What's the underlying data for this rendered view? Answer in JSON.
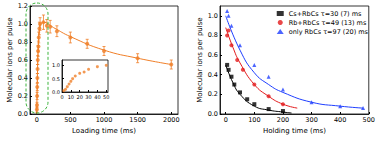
{
  "chart_data": [
    {
      "type": "scatter",
      "x_label": "Loading time (ms)",
      "y_label": "Molecular ions per pulse",
      "xlim": [
        -100,
        2100
      ],
      "xticks": [
        0,
        500,
        1000,
        1500,
        2000
      ],
      "ylim": [
        0,
        1.2
      ],
      "yticks": [
        {
          "value": 0,
          "label": "0.0"
        },
        {
          "value": 0.2,
          "label": "0.2"
        },
        {
          "value": 0.4,
          "label": "0.4"
        },
        {
          "value": 0.6,
          "label": "0.6"
        },
        {
          "value": 0.8,
          "label": "0.8"
        },
        {
          "value": 1.0,
          "label": "1.0"
        },
        {
          "value": 1.2,
          "label": "1.2"
        }
      ],
      "grid": false,
      "series": [
        {
          "color": "#f07f28",
          "marker": "circle",
          "x": [
            2,
            4,
            6,
            8,
            10,
            12,
            15,
            20,
            25,
            30,
            40,
            50,
            100,
            150,
            200,
            300,
            500,
            750,
            1000,
            1500,
            2000
          ],
          "values": [
            0.05,
            0.1,
            0.2,
            0.3,
            0.4,
            0.5,
            0.6,
            0.7,
            0.75,
            0.85,
            0.95,
            1.0,
            1.02,
            0.98,
            0.97,
            0.92,
            0.85,
            0.78,
            0.7,
            0.62,
            0.55
          ],
          "errors": [
            0.03,
            0.03,
            0.04,
            0.04,
            0.05,
            0.05,
            0.05,
            0.06,
            0.06,
            0.06,
            0.07,
            0.07,
            0.08,
            0.07,
            0.07,
            0.06,
            0.06,
            0.05,
            0.05,
            0.05,
            0.05
          ],
          "fit_x": [
            0,
            10,
            25,
            50,
            100,
            250,
            500,
            1000,
            1500,
            2000
          ],
          "fit_values": [
            0,
            0.42,
            0.78,
            0.98,
            1.02,
            0.96,
            0.86,
            0.71,
            0.62,
            0.55
          ]
        }
      ]
    },
    {
      "type": "scatter",
      "xlim": [
        0,
        52
      ],
      "xticks": [
        0,
        10,
        20,
        30,
        40,
        50
      ],
      "ylim": [
        0,
        1.2
      ],
      "yticks": [
        {
          "value": 0,
          "label": "0.0"
        },
        {
          "value": 0.5,
          "label": "0.5"
        },
        {
          "value": 1.0,
          "label": "1.0"
        }
      ],
      "grid": false,
      "series": [
        {
          "color": "#f07f28",
          "marker": "circle",
          "x": [
            2,
            4,
            6,
            8,
            10,
            12,
            15,
            20,
            25,
            30,
            40,
            50
          ],
          "values": [
            0.05,
            0.1,
            0.2,
            0.3,
            0.4,
            0.5,
            0.6,
            0.7,
            0.75,
            0.85,
            0.95,
            1.0
          ]
        }
      ]
    },
    {
      "type": "scatter",
      "x_label": "Holding time (ms)",
      "y_label": "Molecular ions per pulse",
      "xlim": [
        -20,
        500
      ],
      "xticks": [
        0,
        100,
        200,
        300,
        400,
        500
      ],
      "ylim": [
        0,
        1.1
      ],
      "yticks": [
        {
          "value": 0,
          "label": "0.0"
        },
        {
          "value": 0.2,
          "label": "0.2"
        },
        {
          "value": 0.4,
          "label": "0.4"
        },
        {
          "value": 0.6,
          "label": "0.6"
        },
        {
          "value": 0.8,
          "label": "0.8"
        },
        {
          "value": 1.0,
          "label": "1.0"
        }
      ],
      "grid": false,
      "legend": "upper right",
      "series": [
        {
          "name": "Cs+RbCs τ=30 (7) ms",
          "color": "#000000",
          "marker": "square",
          "x": [
            5,
            10,
            20,
            30,
            50,
            75,
            100,
            150,
            200
          ],
          "values": [
            0.5,
            0.45,
            0.38,
            0.3,
            0.22,
            0.15,
            0.1,
            0.05,
            0.03
          ],
          "fit_x": [
            0,
            25,
            50,
            100,
            150,
            200,
            230
          ],
          "fit_values": [
            0.5,
            0.32,
            0.2,
            0.08,
            0.04,
            0.02,
            0.01
          ]
        },
        {
          "name": "Rb+RbCs τ=49 (13) ms",
          "color": "#e31a1c",
          "marker": "circle",
          "x": [
            5,
            10,
            20,
            40,
            60,
            100,
            150,
            200
          ],
          "values": [
            0.8,
            0.85,
            0.7,
            0.55,
            0.45,
            0.3,
            0.18,
            0.1
          ],
          "fit_x": [
            0,
            25,
            50,
            100,
            150,
            200,
            250
          ],
          "fit_values": [
            0.88,
            0.68,
            0.52,
            0.3,
            0.18,
            0.1,
            0.06
          ]
        },
        {
          "name": "only RbCs τ=97 (20) ms",
          "color": "#1f3fff",
          "marker": "triangle",
          "x": [
            5,
            10,
            20,
            50,
            100,
            150,
            200,
            300,
            400,
            480
          ],
          "values": [
            1.05,
            1.0,
            0.9,
            0.7,
            0.5,
            0.38,
            0.25,
            0.12,
            0.08,
            0.06
          ],
          "fit_x": [
            0,
            50,
            100,
            150,
            200,
            300,
            400,
            480
          ],
          "fit_values": [
            1.0,
            0.65,
            0.42,
            0.3,
            0.22,
            0.12,
            0.08,
            0.06
          ]
        }
      ]
    }
  ]
}
